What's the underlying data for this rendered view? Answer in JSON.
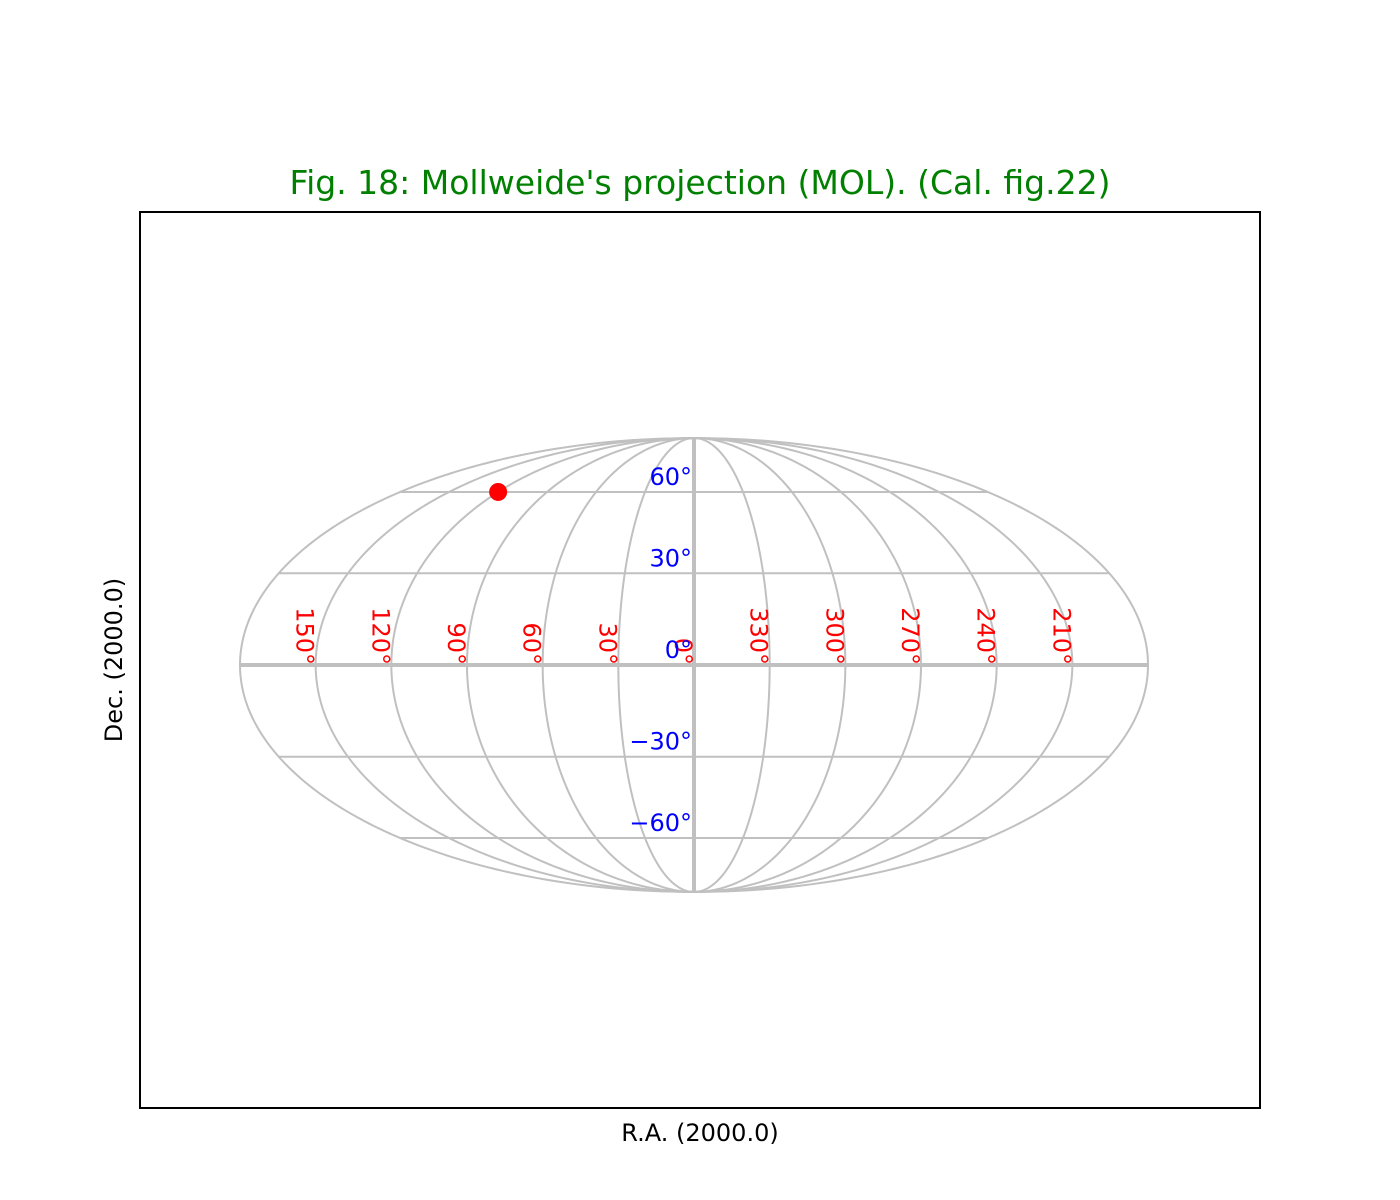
{
  "chart_data": {
    "type": "mollweide",
    "title": "Fig. 18: Mollweide's projection (MOL). (Cal. fig.22)",
    "title_color": "green",
    "xlabel": "R.A. (2000.0)",
    "ylabel": "Dec. (2000.0)",
    "xlim": [
      -180,
      180
    ],
    "ylim": [
      -90,
      90
    ],
    "xticks": [
      {
        "value": 150,
        "label": "150°"
      },
      {
        "value": 120,
        "label": "120°"
      },
      {
        "value": 90,
        "label": "90°"
      },
      {
        "value": 60,
        "label": "60°"
      },
      {
        "value": 30,
        "label": "30°"
      },
      {
        "value": 0,
        "label": "0°"
      },
      {
        "value": 330,
        "label": "330°"
      },
      {
        "value": 300,
        "label": "300°"
      },
      {
        "value": 270,
        "label": "270°"
      },
      {
        "value": 240,
        "label": "240°"
      },
      {
        "value": 210,
        "label": "210°"
      }
    ],
    "xtick_color": "red",
    "yticks": [
      {
        "value": 60,
        "label": "60°"
      },
      {
        "value": 30,
        "label": "30°"
      },
      {
        "value": 0,
        "label": "0°"
      },
      {
        "value": -30,
        "label": "−30°"
      },
      {
        "value": -60,
        "label": "−60°"
      }
    ],
    "ytick_color": "blue",
    "grid": true,
    "grid_color": "#c0c0c0",
    "points": {
      "x": [
        120
      ],
      "y": [
        60
      ],
      "color": "red"
    }
  }
}
